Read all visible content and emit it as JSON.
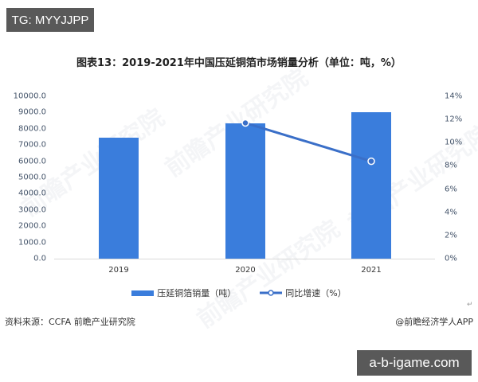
{
  "badges": {
    "top_left": "TG: MYYJJPP",
    "bottom_right": "a-b-igame.com"
  },
  "title": "图表13：2019-2021年中国压延铜箔市场销量分析（单位：吨，%）",
  "legend": {
    "bar_label": "压延铜箔销量（吨）",
    "line_label": "同比增速（%）"
  },
  "footer": {
    "source": "资料来源：CCFA 前瞻产业研究院",
    "credit": "@前瞻经济学人APP",
    "return_mark": "↵"
  },
  "watermark": "前瞻产业研究院",
  "colors": {
    "bar": "#3a7ddc",
    "line": "#3a6fc8",
    "badge": "#595959"
  },
  "axes": {
    "left_ticks": [
      "10000.0",
      "9000.0",
      "8000.0",
      "7000.0",
      "6000.0",
      "5000.0",
      "4000.0",
      "3000.0",
      "2000.0",
      "1000.0",
      "0.0"
    ],
    "right_ticks": [
      "14%",
      "12%",
      "10%",
      "8%",
      "6%",
      "4%",
      "2%",
      "0%"
    ],
    "x_ticks": [
      "2019",
      "2020",
      "2021"
    ]
  },
  "chart_data": {
    "type": "bar",
    "title": "图表13：2019-2021年中国压延铜箔市场销量分析（单位：吨，%）",
    "categories": [
      "2019",
      "2020",
      "2021"
    ],
    "series": [
      {
        "name": "压延铜箔销量（吨）",
        "type": "bar",
        "axis": "left",
        "values": [
          7450,
          8330,
          9020
        ]
      },
      {
        "name": "同比增速（%）",
        "type": "line",
        "axis": "right",
        "values": [
          null,
          11.7,
          8.4
        ]
      }
    ],
    "xlabel": "",
    "ylabel_left": "",
    "ylabel_right": "",
    "ylim_left": [
      0,
      10000
    ],
    "ylim_right": [
      0,
      14
    ],
    "grid": false,
    "legend_position": "bottom",
    "source": "资料来源：CCFA 前瞻产业研究院"
  }
}
